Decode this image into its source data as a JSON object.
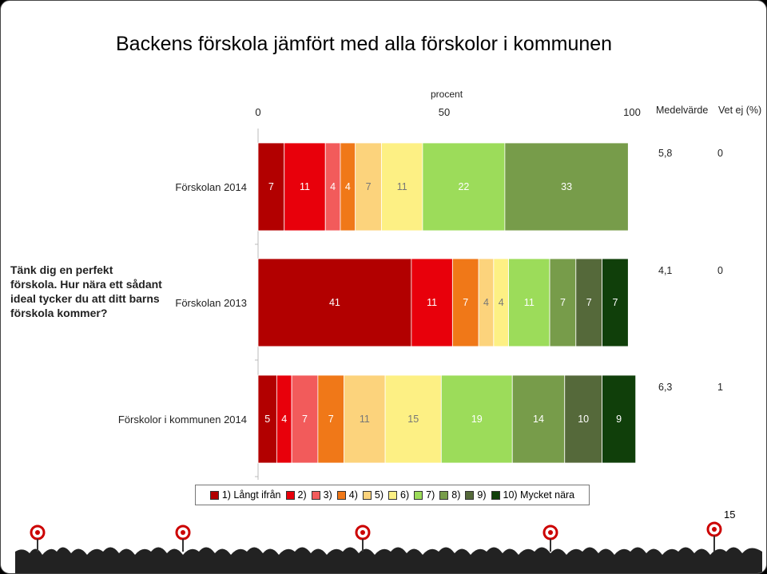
{
  "title": "Backens förskola jämfört med alla förskolor i kommunen",
  "scale_label": "procent",
  "axis_ticks": [
    "0",
    "50",
    "100"
  ],
  "col_headers": {
    "mean": "Medelvärde",
    "dontknow": "Vet ej (%)"
  },
  "question": "Tänk dig en perfekt förskola. Hur nära ett sådant ideal tycker du att ditt barns förskola kommer?",
  "page_number": "15",
  "colors": [
    "#b20000",
    "#e8000b",
    "#f25b5b",
    "#f07818",
    "#fcd37c",
    "#fdf084",
    "#9cdc5a",
    "#779c4a",
    "#55693a",
    "#103f0a"
  ],
  "chart_data": {
    "type": "bar",
    "orientation": "horizontal-stacked",
    "categories": [
      "Förskolan 2014",
      "Förskolan 2013",
      "Förskolor i kommunen 2014"
    ],
    "series": [
      {
        "name": "1) Långt ifrån",
        "values": [
          7,
          41,
          5
        ]
      },
      {
        "name": "2)",
        "values": [
          11,
          11,
          4
        ]
      },
      {
        "name": "3)",
        "values": [
          4,
          0,
          7
        ]
      },
      {
        "name": "4)",
        "values": [
          4,
          7,
          7
        ]
      },
      {
        "name": "5)",
        "values": [
          7,
          4,
          11
        ]
      },
      {
        "name": "6)",
        "values": [
          11,
          4,
          15
        ]
      },
      {
        "name": "7)",
        "values": [
          22,
          11,
          19
        ]
      },
      {
        "name": "8)",
        "values": [
          33,
          7,
          14
        ]
      },
      {
        "name": "9)",
        "values": [
          0,
          7,
          10
        ]
      },
      {
        "name": "10) Mycket nära",
        "values": [
          0,
          7,
          9
        ]
      }
    ],
    "value_labels": [
      [
        "7",
        "11",
        "4",
        "4",
        "7",
        "11",
        "22",
        "33",
        "0",
        ""
      ],
      [
        "41",
        "11",
        "0",
        "7",
        "4",
        "4",
        "11",
        "7",
        "7",
        "7"
      ],
      [
        "5",
        "4",
        "7",
        "7",
        "11",
        "15",
        "19",
        "14",
        "10",
        "9"
      ]
    ],
    "mean": [
      "5,8",
      "4,1",
      "6,3"
    ],
    "vet_ej": [
      "0",
      "0",
      "1"
    ],
    "xlim": [
      0,
      100
    ],
    "xlabel": "procent",
    "legend_position": "bottom"
  }
}
